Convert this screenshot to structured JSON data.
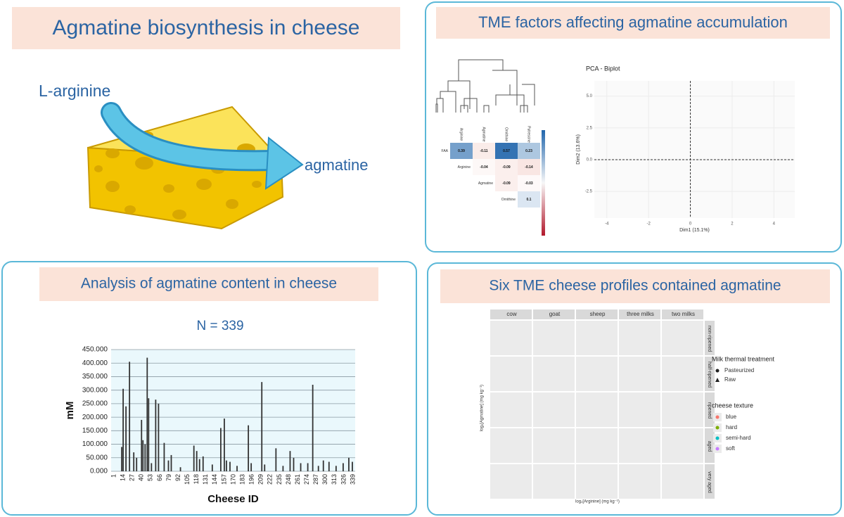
{
  "header": {
    "title": "Agmatine biosynthesis in cheese"
  },
  "pathway": {
    "substrate": "L-arginine",
    "product": "agmatine"
  },
  "tme_panel": {
    "title": "TME factors affecting agmatine accumulation",
    "heatmap": {
      "columns": [
        "Arginine",
        "Agmatine",
        "Ornithine",
        "Putrescine"
      ],
      "rows": [
        "FAA",
        "Arginine",
        "Agmatine",
        "Ornithine"
      ],
      "cells": [
        [
          0.39,
          -0.11,
          0.57,
          0.23
        ],
        [
          null,
          -0.04,
          -0.09,
          -0.14
        ],
        [
          null,
          null,
          -0.09,
          -0.03
        ],
        [
          null,
          null,
          null,
          0.1
        ]
      ]
    },
    "pca": {
      "title": "PCA - Biplot",
      "x_label": "Dim1 (15.1%)",
      "y_label": "Dim2 (13.6%)",
      "xlim": [
        -4.6,
        5
      ],
      "ylim": [
        -4.6,
        6.2
      ],
      "xticks": [
        -4,
        -2,
        0,
        2,
        4
      ],
      "yticks": [
        {
          "value": -2.5,
          "label": "-2.5"
        },
        {
          "value": 0,
          "label": "0.0"
        },
        {
          "value": 2.5,
          "label": "2.5"
        },
        {
          "value": 5,
          "label": "5.0"
        }
      ]
    }
  },
  "analysis_panel": {
    "title": "Analysis of agmatine content in cheese",
    "subtitle": "N = 339"
  },
  "chart_data": {
    "type": "bar",
    "y_label": "mM",
    "x_label": "Cheese ID",
    "color": "#333333",
    "grid": true,
    "x": [
      12,
      14,
      18,
      23,
      29,
      33,
      40,
      42,
      45,
      48,
      50,
      54,
      60,
      64,
      72,
      78,
      82,
      95,
      114,
      118,
      122,
      127,
      140,
      152,
      157,
      160,
      165,
      175,
      191,
      195,
      210,
      214,
      230,
      240,
      250,
      255,
      265,
      275,
      282,
      290,
      297,
      305,
      315,
      325,
      333,
      338
    ],
    "values": [
      90,
      305,
      240,
      405,
      70,
      50,
      190,
      115,
      100,
      420,
      270,
      30,
      265,
      250,
      105,
      40,
      60,
      15,
      95,
      75,
      45,
      55,
      25,
      160,
      195,
      40,
      35,
      20,
      170,
      30,
      330,
      25,
      85,
      20,
      75,
      50,
      30,
      30,
      320,
      20,
      40,
      35,
      20,
      30,
      50,
      35
    ],
    "xlim": [
      -3,
      342
    ],
    "xticks": [
      1,
      14,
      27,
      40,
      53,
      66,
      79,
      92,
      105,
      118,
      131,
      144,
      157,
      170,
      183,
      196,
      209,
      222,
      235,
      248,
      261,
      274,
      287,
      300,
      313,
      326,
      339
    ],
    "ylim": [
      0,
      450
    ],
    "yticks": [
      {
        "value": 0,
        "label": "0.000"
      },
      {
        "value": 50,
        "label": "50.000"
      },
      {
        "value": 100,
        "label": "100.000"
      },
      {
        "value": 150,
        "label": "150.000"
      },
      {
        "value": 200,
        "label": "200.000"
      },
      {
        "value": 250,
        "label": "250.000"
      },
      {
        "value": 300,
        "label": "300.000"
      },
      {
        "value": 350,
        "label": "350.000"
      },
      {
        "value": 400,
        "label": "400.000"
      },
      {
        "value": 450,
        "label": "450.000"
      }
    ]
  },
  "profiles_panel": {
    "title": "Six TME cheese profiles contained agmatine",
    "columns": [
      "cow",
      "goat",
      "sheep",
      "three milks",
      "two milks"
    ],
    "rows": [
      "non-ripened",
      "half-ripened",
      "ripened",
      "aged",
      "very aged"
    ],
    "x_label": "log₂[Arginine] (mg kg⁻¹)",
    "y_label": "log₂[Agmatine] (mg kg⁻¹)",
    "legend_treatment": {
      "title": "Milk thermal treatment",
      "items": [
        "Pasteurized",
        "Raw"
      ]
    },
    "legend_texture": {
      "title": "cheese texture",
      "items": [
        {
          "name": "blue",
          "color": "#f8766d"
        },
        {
          "name": "hard",
          "color": "#7cae00"
        },
        {
          "name": "semi-hard",
          "color": "#00bfc4"
        },
        {
          "name": "soft",
          "color": "#c77cff"
        }
      ]
    }
  }
}
